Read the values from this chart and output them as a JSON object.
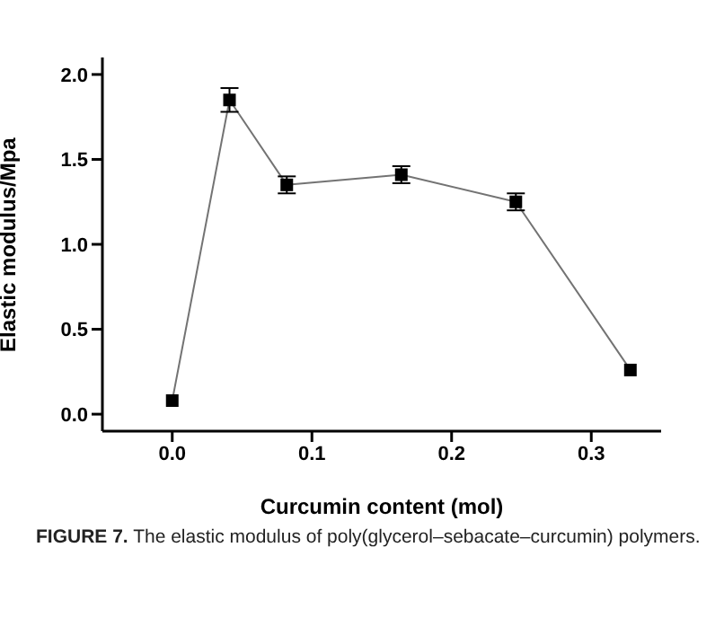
{
  "chart_data": {
    "type": "line",
    "xlabel": "Curcumin content (mol)",
    "ylabel": "Elastic modulus/Mpa",
    "x": [
      0,
      0.041,
      0.082,
      0.164,
      0.246,
      0.328
    ],
    "series": [
      {
        "color": "#000000",
        "values": [
          0.08,
          1.85,
          1.35,
          1.41,
          1.25,
          0.26
        ],
        "errors": [
          null,
          0.07,
          0.05,
          0.05,
          0.05,
          null
        ]
      }
    ],
    "xlim": [
      -0.05,
      0.35
    ],
    "xticks": [
      {
        "value": 0,
        "label": "0.0"
      },
      {
        "value": 0.1,
        "label": "0.1"
      },
      {
        "value": 0.2,
        "label": "0.2"
      },
      {
        "value": 0.3,
        "label": "0.3"
      }
    ],
    "ylim": [
      -0.1,
      2.1
    ],
    "yticks": [
      {
        "value": 0,
        "label": "0.0"
      },
      {
        "value": 0.5,
        "label": "0.5"
      },
      {
        "value": 1,
        "label": "1.0"
      },
      {
        "value": 1.5,
        "label": "1.5"
      },
      {
        "value": 2,
        "label": "2.0"
      }
    ],
    "marker": "square",
    "line_style": "solid",
    "grid": false,
    "legend": false,
    "annotations": [
      "FIGURE 7. The elastic modulus of poly(glycerol–sebacate–curcumin) polymers."
    ]
  }
}
